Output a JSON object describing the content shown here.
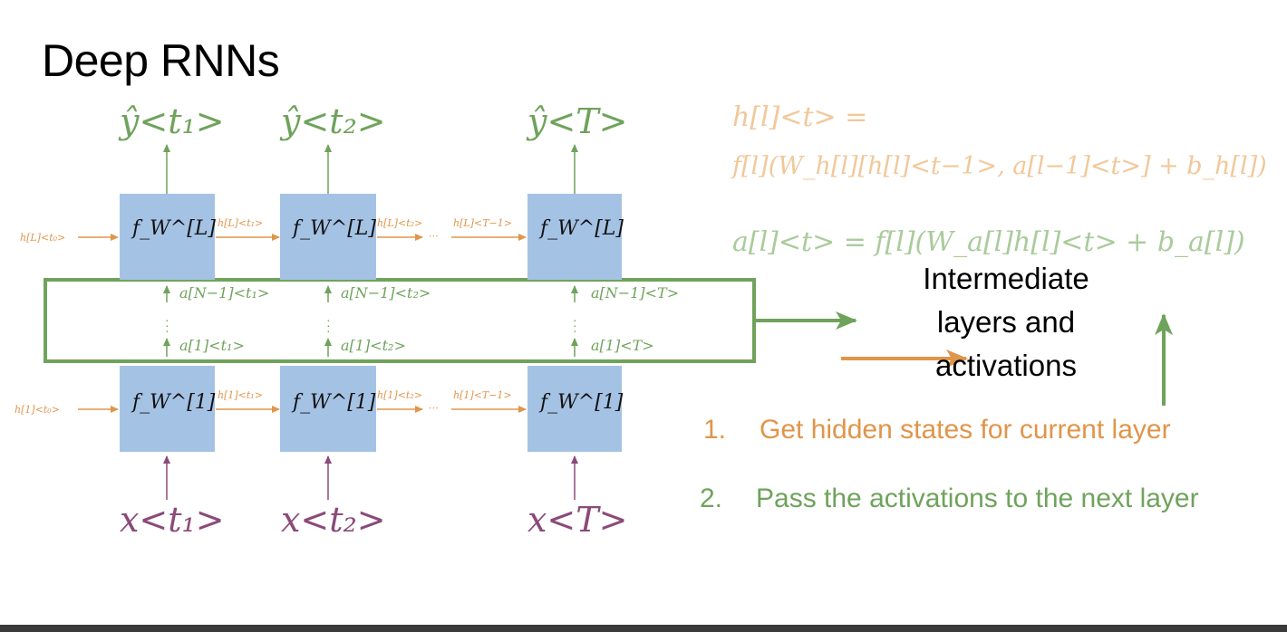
{
  "slide": {
    "title": "Deep RNNs",
    "colors": {
      "orange": "#e0954a",
      "green": "#6fa35b",
      "purple": "#8a4a7a",
      "box": "#a4c2e4"
    }
  },
  "diagram": {
    "outputs": [
      "ŷ<t₁>",
      "ŷ<t₂>",
      "ŷ<T>"
    ],
    "inputs": [
      "x<t₁>",
      "x<t₂>",
      "x<T>"
    ],
    "top_layer_cells": [
      "f_W^[L]",
      "f_W^[L]",
      "f_W^[L]"
    ],
    "bottom_layer_cells": [
      "f_W^[1]",
      "f_W^[1]",
      "f_W^[1]"
    ],
    "top_hidden_labels": [
      "h[L]<t₀>",
      "h[L]<t₁>",
      "h[L]<t₂>",
      "h[L]<T−1>"
    ],
    "bottom_hidden_labels": [
      "h[1]<t₀>",
      "h[1]<t₁>",
      "h[1]<t₂>",
      "h[1]<T−1>"
    ],
    "upper_activations": [
      "a[N−1]<t₁>",
      "a[N−1]<t₂>",
      "a[N−1]<T>"
    ],
    "lower_activations": [
      "a[1]<t₁>",
      "a[1]<t₂>",
      "a[1]<T>"
    ],
    "ellipsis": "⋯"
  },
  "equations": {
    "hidden_line1": "h[l]<t> =",
    "hidden_line2": "f[l](W_h[l][h[l]<t−1>, a[l−1]<t>] + b_h[l])",
    "activation": "a[l]<t> = f[l](W_a[l]h[l]<t> + b_a[l])"
  },
  "intermediate_label": [
    "Intermediate",
    "layers and",
    "activations"
  ],
  "steps": [
    {
      "number": "1.",
      "text": "Get hidden states for current layer"
    },
    {
      "number": "2.",
      "text": "Pass the activations to the next layer"
    }
  ]
}
